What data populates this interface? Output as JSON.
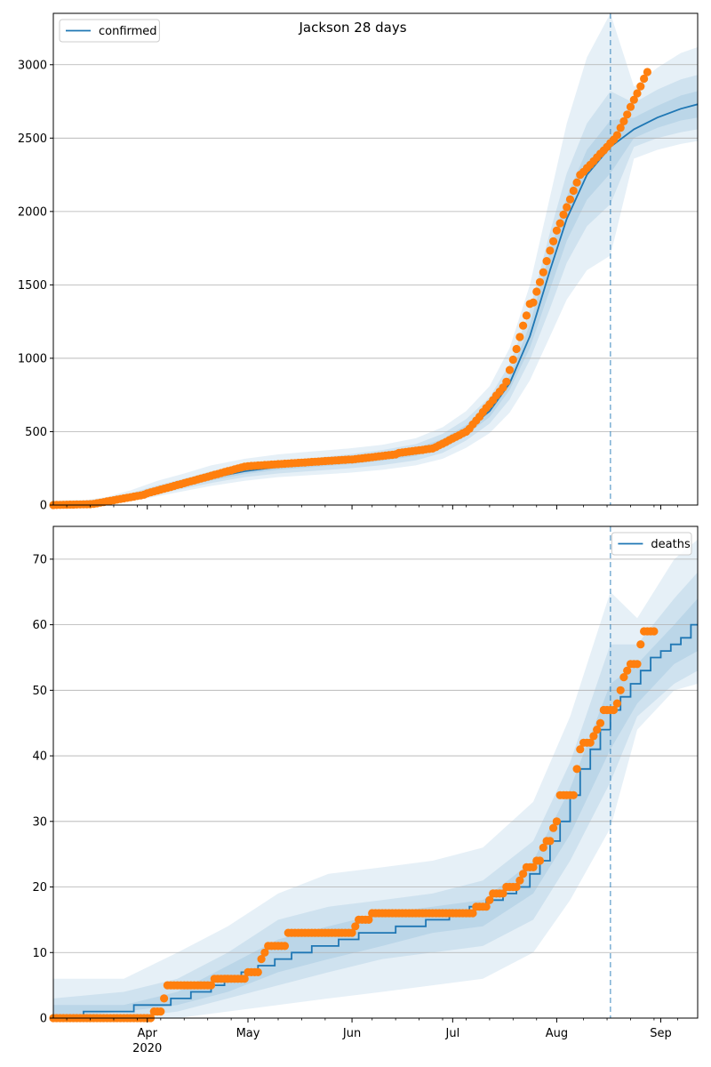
{
  "figure": {
    "title": "Jackson 28 days"
  },
  "colors": {
    "model_line": "#1f77b4",
    "observed_points": "#ff7f0e",
    "band": "#1f77b4",
    "grid": "#b0b0b0",
    "forecast_marker": "#1f77b4"
  },
  "x_axis": {
    "ticks": [
      {
        "date": "2020-04-01",
        "label": "Apr",
        "sublabel": "2020"
      },
      {
        "date": "2020-05-01",
        "label": "May"
      },
      {
        "date": "2020-06-01",
        "label": "Jun"
      },
      {
        "date": "2020-07-01",
        "label": "Jul"
      },
      {
        "date": "2020-08-01",
        "label": "Aug"
      },
      {
        "date": "2020-09-01",
        "label": "Sep"
      }
    ]
  },
  "chart_data": [
    {
      "type": "line",
      "legend_position": "upper-left",
      "grid": "horizontal",
      "xlim": [
        "2020-03-04",
        "2020-09-12"
      ],
      "ylim": [
        0,
        3350
      ],
      "yticks": [
        0,
        500,
        1000,
        1500,
        2000,
        2500,
        3000
      ],
      "forecast_start": "2020-08-17",
      "model_series": {
        "name": "confirmed",
        "points": [
          [
            "2020-03-04",
            5
          ],
          [
            "2020-03-14",
            8
          ],
          [
            "2020-03-20",
            20
          ],
          [
            "2020-03-27",
            50
          ],
          [
            "2020-04-04",
            100
          ],
          [
            "2020-04-12",
            140
          ],
          [
            "2020-04-20",
            185
          ],
          [
            "2020-04-30",
            230
          ],
          [
            "2020-05-10",
            260
          ],
          [
            "2020-05-20",
            280
          ],
          [
            "2020-05-31",
            300
          ],
          [
            "2020-06-10",
            325
          ],
          [
            "2020-06-20",
            360
          ],
          [
            "2020-06-28",
            420
          ],
          [
            "2020-07-05",
            510
          ],
          [
            "2020-07-12",
            640
          ],
          [
            "2020-07-18",
            830
          ],
          [
            "2020-07-24",
            1150
          ],
          [
            "2020-07-30",
            1600
          ],
          [
            "2020-08-04",
            1950
          ],
          [
            "2020-08-10",
            2250
          ],
          [
            "2020-08-17",
            2440
          ],
          [
            "2020-08-24",
            2560
          ],
          [
            "2020-08-31",
            2640
          ],
          [
            "2020-09-07",
            2700
          ],
          [
            "2020-09-12",
            2730
          ]
        ],
        "bands": [
          {
            "level": "outer",
            "lower": [
              0,
              0,
              5,
              25,
              60,
              95,
              130,
              165,
              190,
              205,
              220,
              240,
              270,
              315,
              390,
              490,
              630,
              850,
              1150,
              1400,
              1600,
              1700,
              2360,
              2420,
              2460,
              2480
            ],
            "upper": [
              30,
              35,
              55,
              100,
              165,
              215,
              270,
              315,
              345,
              365,
              385,
              410,
              455,
              530,
              640,
              810,
              1070,
              1500,
              2100,
              2600,
              3050,
              3350,
              2850,
              2980,
              3080,
              3120
            ]
          },
          {
            "level": "middle",
            "lower": [
              0,
              2,
              10,
              35,
              75,
              112,
              150,
              190,
              215,
              232,
              250,
              272,
              305,
              355,
              440,
              555,
              720,
              990,
              1340,
              1650,
              1900,
              2050,
              2440,
              2500,
              2540,
              2560
            ],
            "upper": [
              18,
              22,
              40,
              80,
              135,
              180,
              230,
              270,
              298,
              320,
              345,
              375,
              415,
              485,
              585,
              735,
              960,
              1330,
              1860,
              2260,
              2600,
              2820,
              2740,
              2830,
              2900,
              2930
            ]
          },
          {
            "level": "inner",
            "lower": [
              2,
              4,
              14,
              42,
              88,
              126,
              167,
              210,
              240,
              258,
              278,
              302,
              335,
              392,
              478,
              600,
              785,
              1070,
              1470,
              1800,
              2080,
              2260,
              2500,
              2570,
              2620,
              2640
            ],
            "upper": [
              10,
              14,
              30,
              62,
              115,
              158,
              205,
              250,
              282,
              302,
              325,
              350,
              388,
              450,
              545,
              685,
              880,
              1230,
              1730,
              2100,
              2420,
              2620,
              2640,
              2720,
              2790,
              2820
            ]
          }
        ]
      },
      "observed": {
        "segments": [
          {
            "start": "2020-03-04",
            "end": "2020-03-15",
            "from": 0,
            "to": 6
          },
          {
            "start": "2020-03-16",
            "end": "2020-03-31",
            "from": 8,
            "to": 70
          },
          {
            "start": "2020-04-01",
            "end": "2020-04-30",
            "from": 80,
            "to": 262
          },
          {
            "start": "2020-05-01",
            "end": "2020-05-31",
            "from": 265,
            "to": 310
          },
          {
            "start": "2020-06-01",
            "end": "2020-06-14",
            "from": 310,
            "to": 345
          },
          {
            "start": "2020-06-15",
            "end": "2020-06-25",
            "from": 355,
            "to": 385
          },
          {
            "start": "2020-06-26",
            "end": "2020-07-05",
            "from": 395,
            "to": 500
          },
          {
            "start": "2020-07-06",
            "end": "2020-07-16",
            "from": 520,
            "to": 800
          },
          {
            "start": "2020-07-17",
            "end": "2020-07-24",
            "from": 840,
            "to": 1370
          },
          {
            "start": "2020-07-25",
            "end": "2020-08-01",
            "from": 1380,
            "to": 1870
          },
          {
            "start": "2020-08-02",
            "end": "2020-08-08",
            "from": 1920,
            "to": 2250
          },
          {
            "start": "2020-08-09",
            "end": "2020-08-18",
            "from": 2270,
            "to": 2490
          },
          {
            "start": "2020-08-19",
            "end": "2020-08-28",
            "from": 2520,
            "to": 2950
          }
        ]
      }
    },
    {
      "type": "line",
      "legend_position": "upper-right",
      "grid": "horizontal",
      "xlim": [
        "2020-03-04",
        "2020-09-12"
      ],
      "ylim": [
        0,
        75
      ],
      "yticks": [
        0,
        10,
        20,
        30,
        40,
        50,
        60,
        70
      ],
      "forecast_start": "2020-08-17",
      "model_series": {
        "name": "deaths",
        "step": true,
        "points": [
          [
            "2020-03-04",
            0
          ],
          [
            "2020-03-13",
            1
          ],
          [
            "2020-03-28",
            2
          ],
          [
            "2020-04-08",
            3
          ],
          [
            "2020-04-14",
            4
          ],
          [
            "2020-04-20",
            5
          ],
          [
            "2020-04-24",
            6
          ],
          [
            "2020-04-29",
            7
          ],
          [
            "2020-05-04",
            8
          ],
          [
            "2020-05-09",
            9
          ],
          [
            "2020-05-14",
            10
          ],
          [
            "2020-05-20",
            11
          ],
          [
            "2020-05-28",
            12
          ],
          [
            "2020-06-03",
            13
          ],
          [
            "2020-06-14",
            14
          ],
          [
            "2020-06-23",
            15
          ],
          [
            "2020-06-30",
            16
          ],
          [
            "2020-07-06",
            17
          ],
          [
            "2020-07-11",
            18
          ],
          [
            "2020-07-16",
            19
          ],
          [
            "2020-07-20",
            20
          ],
          [
            "2020-07-24",
            22
          ],
          [
            "2020-07-27",
            24
          ],
          [
            "2020-07-30",
            27
          ],
          [
            "2020-08-02",
            30
          ],
          [
            "2020-08-05",
            34
          ],
          [
            "2020-08-08",
            38
          ],
          [
            "2020-08-11",
            41
          ],
          [
            "2020-08-14",
            44
          ],
          [
            "2020-08-17",
            47
          ],
          [
            "2020-08-20",
            49
          ],
          [
            "2020-08-23",
            51
          ],
          [
            "2020-08-26",
            53
          ],
          [
            "2020-08-29",
            55
          ],
          [
            "2020-09-01",
            56
          ],
          [
            "2020-09-04",
            57
          ],
          [
            "2020-09-07",
            58
          ],
          [
            "2020-09-10",
            60
          ],
          [
            "2020-09-12",
            60
          ]
        ],
        "band_dates": [
          "2020-03-04",
          "2020-03-25",
          "2020-04-10",
          "2020-04-25",
          "2020-05-10",
          "2020-05-25",
          "2020-06-10",
          "2020-06-25",
          "2020-07-10",
          "2020-07-25",
          "2020-08-05",
          "2020-08-17",
          "2020-08-25",
          "2020-09-05",
          "2020-09-12"
        ],
        "bands": [
          {
            "level": "outer",
            "lower": [
              0,
              0,
              0,
              1,
              2,
              3,
              4,
              5,
              6,
              10,
              18,
              29,
              44,
              50,
              51
            ],
            "upper": [
              6,
              6,
              10,
              14,
              19,
              22,
              23,
              24,
              26,
              33,
              46,
              65,
              61,
              70,
              73
            ]
          },
          {
            "level": "middle",
            "lower": [
              0,
              0,
              1,
              3,
              5,
              7,
              9,
              10,
              11,
              15,
              24,
              36,
              46,
              51,
              53
            ],
            "upper": [
              3,
              4,
              6,
              10,
              15,
              17,
              18,
              19,
              21,
              27,
              39,
              57,
              57,
              64,
              68
            ]
          },
          {
            "level": "inner",
            "lower": [
              0,
              1,
              2,
              4,
              7,
              9,
              11,
              13,
              14,
              19,
              28,
              41,
              48,
              54,
              56
            ],
            "upper": [
              2,
              2,
              4,
              8,
              12,
              14,
              16,
              17,
              18,
              24,
              35,
              51,
              54,
              60,
              64
            ]
          }
        ]
      },
      "observed": {
        "values": [
          [
            "2020-03-04",
            0
          ],
          [
            "2020-03-30",
            0
          ],
          [
            "2020-04-03",
            1
          ],
          [
            "2020-04-05",
            1
          ],
          [
            "2020-04-06",
            3
          ],
          [
            "2020-04-07",
            5
          ],
          [
            "2020-04-20",
            5
          ],
          [
            "2020-04-21",
            6
          ],
          [
            "2020-04-30",
            6
          ],
          [
            "2020-05-01",
            7
          ],
          [
            "2020-05-04",
            7
          ],
          [
            "2020-05-05",
            9
          ],
          [
            "2020-05-06",
            10
          ],
          [
            "2020-05-07",
            11
          ],
          [
            "2020-05-12",
            11
          ],
          [
            "2020-05-13",
            13
          ],
          [
            "2020-06-01",
            13
          ],
          [
            "2020-06-02",
            14
          ],
          [
            "2020-06-03",
            15
          ],
          [
            "2020-06-06",
            15
          ],
          [
            "2020-06-07",
            16
          ],
          [
            "2020-07-07",
            16
          ],
          [
            "2020-07-08",
            17
          ],
          [
            "2020-07-11",
            17
          ],
          [
            "2020-07-12",
            18
          ],
          [
            "2020-07-13",
            19
          ],
          [
            "2020-07-16",
            19
          ],
          [
            "2020-07-17",
            20
          ],
          [
            "2020-07-20",
            20
          ],
          [
            "2020-07-21",
            21
          ],
          [
            "2020-07-22",
            22
          ],
          [
            "2020-07-23",
            23
          ],
          [
            "2020-07-25",
            23
          ],
          [
            "2020-07-26",
            24
          ],
          [
            "2020-07-27",
            24
          ],
          [
            "2020-07-28",
            26
          ],
          [
            "2020-07-29",
            27
          ],
          [
            "2020-07-30",
            27
          ],
          [
            "2020-07-31",
            29
          ],
          [
            "2020-08-01",
            30
          ],
          [
            "2020-08-02",
            34
          ],
          [
            "2020-08-06",
            34
          ],
          [
            "2020-08-07",
            38
          ],
          [
            "2020-08-08",
            41
          ],
          [
            "2020-08-09",
            42
          ],
          [
            "2020-08-11",
            42
          ],
          [
            "2020-08-12",
            43
          ],
          [
            "2020-08-13",
            44
          ],
          [
            "2020-08-14",
            45
          ],
          [
            "2020-08-15",
            47
          ],
          [
            "2020-08-18",
            47
          ],
          [
            "2020-08-19",
            48
          ],
          [
            "2020-08-20",
            50
          ],
          [
            "2020-08-21",
            52
          ],
          [
            "2020-08-22",
            53
          ],
          [
            "2020-08-23",
            54
          ],
          [
            "2020-08-25",
            54
          ],
          [
            "2020-08-26",
            57
          ],
          [
            "2020-08-27",
            59
          ],
          [
            "2020-08-30",
            59
          ]
        ]
      }
    }
  ]
}
